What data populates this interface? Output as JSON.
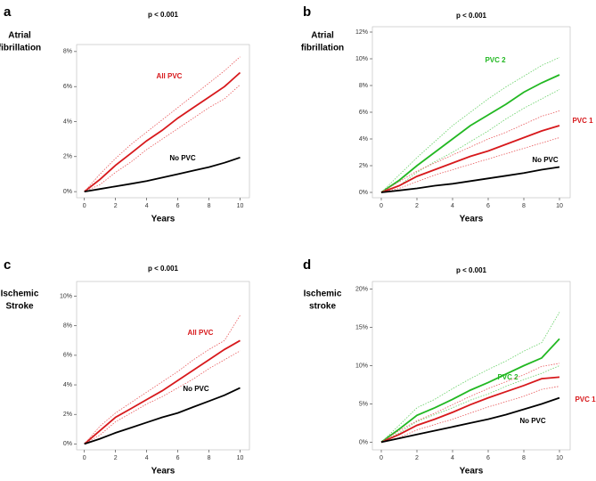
{
  "chart_data": [
    {
      "type": "line",
      "panel": "a",
      "title": "p < 0.001",
      "ylabel": [
        "Atrial",
        "fibrillation"
      ],
      "xlabel": "Years",
      "x": [
        0,
        1,
        2,
        3,
        4,
        5,
        6,
        7,
        8,
        9,
        10
      ],
      "xlim": [
        -0.5,
        10.6
      ],
      "xticks": [
        0,
        2,
        4,
        6,
        8,
        10
      ],
      "ylim": [
        -0.35,
        8.4
      ],
      "yticks": [
        {
          "value": 0,
          "label": "0%"
        },
        {
          "value": 2,
          "label": "2%"
        },
        {
          "value": 4,
          "label": "4%"
        },
        {
          "value": 6,
          "label": "6%"
        },
        {
          "value": 8,
          "label": "8%"
        }
      ],
      "series": [
        {
          "name": "All PVC",
          "color": "#d7191c",
          "values": [
            0,
            0.7,
            1.5,
            2.2,
            2.9,
            3.5,
            4.2,
            4.8,
            5.4,
            6.0,
            6.8
          ]
        },
        {
          "color": "#e8595b",
          "dashed": true,
          "values": [
            0,
            1.0,
            1.9,
            2.7,
            3.4,
            4.1,
            4.8,
            5.5,
            6.2,
            6.9,
            7.7
          ]
        },
        {
          "color": "#e8595b",
          "dashed": true,
          "values": [
            0,
            0.4,
            1.1,
            1.7,
            2.4,
            3.0,
            3.6,
            4.2,
            4.8,
            5.3,
            6.1
          ]
        },
        {
          "name": "No PVC",
          "color": "#000000",
          "values": [
            0,
            0.15,
            0.3,
            0.45,
            0.6,
            0.8,
            1.0,
            1.2,
            1.4,
            1.65,
            1.95
          ]
        }
      ]
    },
    {
      "type": "line",
      "panel": "b",
      "title": "p < 0.001",
      "ylabel": [
        "Atrial",
        "fibrillation"
      ],
      "xlabel": "Years",
      "x": [
        0,
        1,
        2,
        3,
        4,
        5,
        6,
        7,
        8,
        9,
        10
      ],
      "xlim": [
        -0.5,
        10.6
      ],
      "xticks": [
        0,
        2,
        4,
        6,
        8,
        10
      ],
      "ylim": [
        -0.4,
        12.4
      ],
      "yticks": [
        {
          "value": 0,
          "label": "0%"
        },
        {
          "value": 2,
          "label": "2%"
        },
        {
          "value": 4,
          "label": "4%"
        },
        {
          "value": 6,
          "label": "6%"
        },
        {
          "value": 8,
          "label": "8%"
        },
        {
          "value": 10,
          "label": "10%"
        },
        {
          "value": 12,
          "label": "12%"
        }
      ],
      "series": [
        {
          "name": "PVC 2",
          "color": "#22b822",
          "values": [
            0,
            0.9,
            2.0,
            3.0,
            4.0,
            5.0,
            5.8,
            6.6,
            7.5,
            8.2,
            8.8
          ]
        },
        {
          "color": "#66d066",
          "dashed": true,
          "values": [
            0,
            1.3,
            2.6,
            3.8,
            5.0,
            6.0,
            7.0,
            7.9,
            8.7,
            9.5,
            10.1
          ]
        },
        {
          "color": "#66d066",
          "dashed": true,
          "values": [
            0,
            0.5,
            1.5,
            2.3,
            3.0,
            3.8,
            4.6,
            5.5,
            6.3,
            7.0,
            7.7
          ]
        },
        {
          "name": "PVC 1",
          "color": "#d7191c",
          "values": [
            0,
            0.5,
            1.2,
            1.7,
            2.2,
            2.7,
            3.1,
            3.6,
            4.1,
            4.6,
            5.0
          ]
        },
        {
          "color": "#e8595b",
          "dashed": true,
          "values": [
            0,
            0.8,
            1.6,
            2.2,
            2.8,
            3.4,
            4.0,
            4.5,
            5.1,
            5.7,
            6.1
          ]
        },
        {
          "color": "#e8595b",
          "dashed": true,
          "values": [
            0,
            0.3,
            0.8,
            1.3,
            1.7,
            2.1,
            2.5,
            2.9,
            3.3,
            3.7,
            4.1
          ]
        },
        {
          "name": "No PVC",
          "color": "#000000",
          "values": [
            0,
            0.15,
            0.3,
            0.5,
            0.65,
            0.85,
            1.05,
            1.25,
            1.45,
            1.7,
            1.9
          ]
        }
      ]
    },
    {
      "type": "line",
      "panel": "c",
      "title": "p < 0.001",
      "ylabel": [
        "Ischemic",
        "Stroke"
      ],
      "xlabel": "Years",
      "x": [
        0,
        1,
        2,
        3,
        4,
        5,
        6,
        7,
        8,
        9,
        10
      ],
      "xlim": [
        -0.5,
        10.6
      ],
      "xticks": [
        0,
        2,
        4,
        6,
        8,
        10
      ],
      "ylim": [
        -0.4,
        11
      ],
      "yticks": [
        {
          "value": 0,
          "label": "0%"
        },
        {
          "value": 2,
          "label": "2%"
        },
        {
          "value": 4,
          "label": "4%"
        },
        {
          "value": 6,
          "label": "6%"
        },
        {
          "value": 8,
          "label": "8%"
        },
        {
          "value": 10,
          "label": "10%"
        }
      ],
      "series": [
        {
          "name": "All PVC",
          "color": "#d7191c",
          "values": [
            0,
            0.9,
            1.8,
            2.4,
            3.0,
            3.6,
            4.3,
            5.0,
            5.7,
            6.4,
            7.0
          ]
        },
        {
          "color": "#e8595b",
          "dashed": true,
          "values": [
            0,
            1.2,
            2.1,
            2.8,
            3.5,
            4.2,
            4.9,
            5.7,
            6.4,
            7.0,
            8.7
          ]
        },
        {
          "color": "#e8595b",
          "dashed": true,
          "values": [
            0,
            0.6,
            1.5,
            2.1,
            2.7,
            3.2,
            3.8,
            4.4,
            5.1,
            5.7,
            6.3
          ]
        },
        {
          "name": "No PVC",
          "color": "#000000",
          "values": [
            0,
            0.35,
            0.75,
            1.1,
            1.45,
            1.8,
            2.1,
            2.5,
            2.9,
            3.3,
            3.8
          ]
        }
      ]
    },
    {
      "type": "line",
      "panel": "d",
      "title": "p < 0.001",
      "ylabel": [
        "Ischemic",
        "stroke"
      ],
      "xlabel": "Years",
      "x": [
        0,
        1,
        2,
        3,
        4,
        5,
        6,
        7,
        8,
        9,
        10
      ],
      "xlim": [
        -0.5,
        10.6
      ],
      "xticks": [
        0,
        2,
        4,
        6,
        8,
        10
      ],
      "ylim": [
        -1,
        21
      ],
      "yticks": [
        {
          "value": 0,
          "label": "0%"
        },
        {
          "value": 5,
          "label": "5%"
        },
        {
          "value": 10,
          "label": "10%"
        },
        {
          "value": 15,
          "label": "15%"
        },
        {
          "value": 20,
          "label": "20%"
        }
      ],
      "series": [
        {
          "name": "PVC 2",
          "color": "#22b822",
          "values": [
            0,
            1.7,
            3.5,
            4.5,
            5.6,
            6.8,
            7.8,
            8.9,
            10,
            11,
            13.5
          ]
        },
        {
          "color": "#66d066",
          "dashed": true,
          "values": [
            0,
            2.2,
            4.5,
            5.6,
            7.0,
            8.3,
            9.5,
            10.6,
            11.9,
            13,
            17
          ]
        },
        {
          "color": "#66d066",
          "dashed": true,
          "values": [
            0,
            1.2,
            2.7,
            3.6,
            4.5,
            5.5,
            6.3,
            7.3,
            8.2,
            9.0,
            10
          ]
        },
        {
          "name": "PVC 1",
          "color": "#d7191c",
          "values": [
            0,
            1.0,
            2.2,
            3.0,
            3.9,
            4.9,
            5.8,
            6.6,
            7.4,
            8.3,
            8.5
          ]
        },
        {
          "color": "#e8595b",
          "dashed": true,
          "values": [
            0,
            1.5,
            2.8,
            3.8,
            4.9,
            6.0,
            7.0,
            7.9,
            8.8,
            9.9,
            10.3
          ]
        },
        {
          "color": "#e8595b",
          "dashed": true,
          "values": [
            0,
            0.6,
            1.6,
            2.3,
            3.0,
            3.8,
            4.6,
            5.3,
            6.0,
            6.9,
            7.3
          ]
        },
        {
          "name": "No PVC",
          "color": "#000000",
          "values": [
            0,
            0.5,
            1.0,
            1.5,
            2.0,
            2.5,
            3.0,
            3.6,
            4.3,
            5.0,
            5.8
          ]
        }
      ]
    }
  ]
}
